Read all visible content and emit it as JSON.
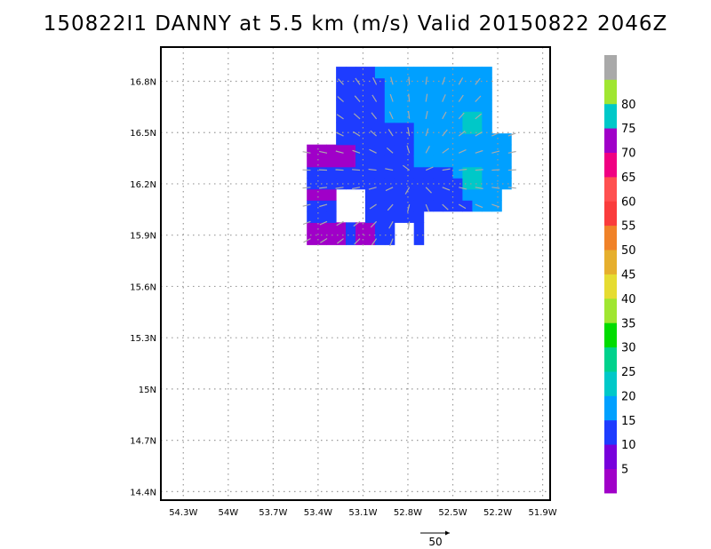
{
  "chart_data": {
    "type": "heatmap",
    "title": "150822I1 DANNY at 5.5 km (m/s) Valid 20150822 2046Z",
    "xlabel": "",
    "ylabel": "",
    "xlim": [
      -54.45,
      -51.85
    ],
    "ylim": [
      14.35,
      17.0
    ],
    "x_ticks": [
      -54.3,
      -54.0,
      -53.7,
      -53.4,
      -53.1,
      -52.8,
      -52.5,
      -52.2,
      -51.9
    ],
    "x_tick_labels": [
      "54.3W",
      "54W",
      "53.7W",
      "53.4W",
      "53.1W",
      "52.8W",
      "52.5W",
      "52.2W",
      "51.9W"
    ],
    "y_ticks": [
      14.4,
      14.7,
      15.0,
      15.3,
      15.6,
      15.9,
      16.2,
      16.5,
      16.8
    ],
    "y_tick_labels": [
      "14.4N",
      "14.7N",
      "15N",
      "15.3N",
      "15.6N",
      "15.9N",
      "16.2N",
      "16.5N",
      "16.8N"
    ],
    "grid": true,
    "colorbar": {
      "bounds": [
        0,
        5,
        10,
        15,
        20,
        25,
        30,
        35,
        40,
        45,
        50,
        55,
        60,
        65,
        70,
        75,
        80,
        85
      ],
      "labels": [
        "5",
        "10",
        "15",
        "20",
        "25",
        "30",
        "35",
        "40",
        "45",
        "50",
        "55",
        "60",
        "65",
        "70",
        "75",
        "80"
      ],
      "colors": [
        "#a000c8",
        "#7800dc",
        "#1e3cff",
        "#00a0ff",
        "#00c8c8",
        "#00d28c",
        "#00dc00",
        "#a0e632",
        "#e6dc32",
        "#e6af2d",
        "#f08228",
        "#fa3c3c",
        "#ff5050",
        "#f00082",
        "#a000c8",
        "#00c8c8",
        "#a0e632",
        "#a9a9a9"
      ]
    },
    "wind_field": {
      "description_bins_m_s": "speed category per region",
      "regions": [
        {
          "category": "5-10",
          "lon_min": -53.55,
          "lon_max": -53.05,
          "lat_min": 15.85,
          "lat_max": 16.45
        },
        {
          "category": "10-15",
          "lon_min": -53.45,
          "lon_max": -52.85,
          "lat_min": 15.85,
          "lat_max": 16.9
        },
        {
          "category": "15-20",
          "lon_min": -52.95,
          "lon_max": -52.1,
          "lat_min": 16.0,
          "lat_max": 16.9
        },
        {
          "category": "20-25",
          "lon_min": -52.5,
          "lon_max": -52.3,
          "lat_min": 16.15,
          "lat_max": 16.6
        }
      ]
    },
    "reference_vector": {
      "value": "50"
    }
  }
}
